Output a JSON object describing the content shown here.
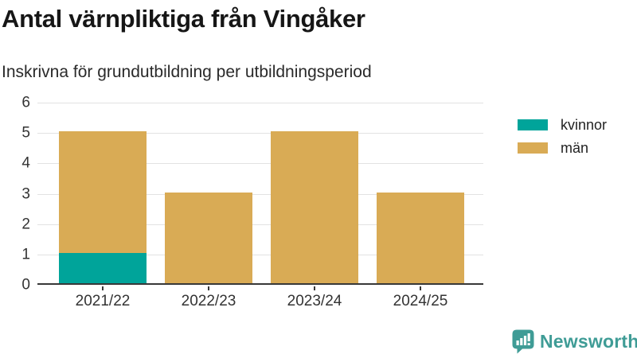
{
  "header": {
    "title": "Antal värnpliktiga från Vingåker",
    "subtitle": "Inskrivna för grundutbildning per utbildningsperiod"
  },
  "chart_data": {
    "type": "bar",
    "stacked": true,
    "title": "Antal värnpliktiga från Vingåker",
    "subtitle": "Inskrivna för grundutbildning per utbildningsperiod",
    "categories": [
      "2021/22",
      "2022/23",
      "2023/24",
      "2024/25"
    ],
    "series": [
      {
        "name": "kvinnor",
        "color": "#00a49a",
        "values": [
          1,
          0,
          0,
          0
        ]
      },
      {
        "name": "män",
        "color": "#d9ab55",
        "values": [
          4,
          3,
          5,
          3
        ]
      }
    ],
    "totals": [
      5,
      3,
      5,
      3
    ],
    "xlabel": "",
    "ylabel": "",
    "ylim": [
      0,
      6
    ],
    "yticks": [
      0,
      1,
      2,
      3,
      4,
      5,
      6
    ],
    "grid": true,
    "legend_position": "top-right"
  },
  "footer": {
    "brand": "Newsworthy"
  },
  "colors": {
    "kvinnor": "#00a49a",
    "man": "#d9ab55",
    "gridline": "#e2e2e2",
    "axis_line": "#383838",
    "tick_label": "#333333",
    "brand_teal": "#3f9c96"
  }
}
